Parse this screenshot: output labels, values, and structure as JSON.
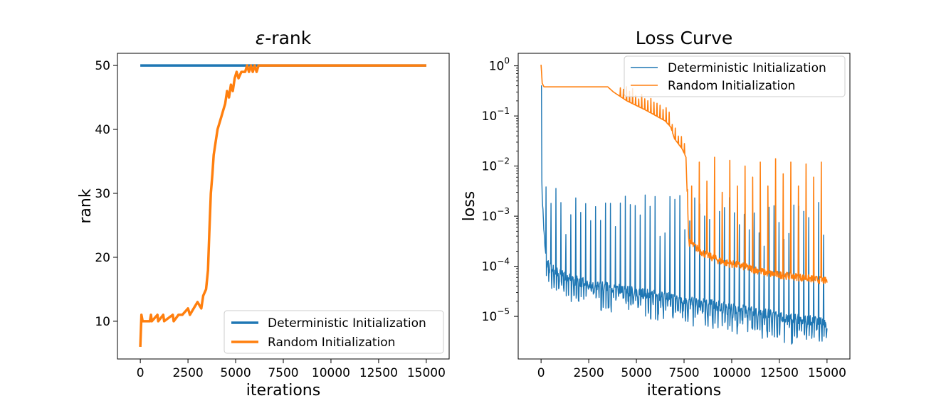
{
  "chart_data": [
    {
      "type": "line",
      "title_symbol": "ε",
      "title_rest": "-rank",
      "xlabel": "iterations",
      "ylabel": "rank",
      "xlim": [
        -1200,
        16200
      ],
      "ylim": [
        4.1,
        51.9
      ],
      "xticks": [
        0,
        2500,
        5000,
        7500,
        10000,
        12500,
        15000
      ],
      "yticks": [
        10,
        20,
        30,
        40,
        50
      ],
      "legend": "lower-right",
      "series": [
        {
          "name": "Deterministic Initialization",
          "color": "#1f77b4",
          "points": [
            [
              0,
              50
            ],
            [
              15000,
              50
            ]
          ]
        },
        {
          "name": "Random Initialization",
          "color": "#ff7f0e",
          "points": [
            [
              0,
              6
            ],
            [
              60,
              11
            ],
            [
              120,
              10
            ],
            [
              500,
              10
            ],
            [
              560,
              11
            ],
            [
              600,
              10
            ],
            [
              900,
              11
            ],
            [
              940,
              10
            ],
            [
              1200,
              11
            ],
            [
              1250,
              10
            ],
            [
              1700,
              11
            ],
            [
              1750,
              10
            ],
            [
              2000,
              11
            ],
            [
              2200,
              11
            ],
            [
              2500,
              12
            ],
            [
              2600,
              11
            ],
            [
              2800,
              12
            ],
            [
              3000,
              13
            ],
            [
              3200,
              12
            ],
            [
              3300,
              14
            ],
            [
              3450,
              15
            ],
            [
              3550,
              18
            ],
            [
              3620,
              24
            ],
            [
              3700,
              30
            ],
            [
              3780,
              33
            ],
            [
              3850,
              36
            ],
            [
              3950,
              38
            ],
            [
              4050,
              40
            ],
            [
              4150,
              41
            ],
            [
              4250,
              42
            ],
            [
              4350,
              43
            ],
            [
              4450,
              44
            ],
            [
              4550,
              46
            ],
            [
              4650,
              45
            ],
            [
              4750,
              47
            ],
            [
              4850,
              46
            ],
            [
              4950,
              48
            ],
            [
              5050,
              49
            ],
            [
              5150,
              48
            ],
            [
              5300,
              49
            ],
            [
              5500,
              49
            ],
            [
              5600,
              50
            ],
            [
              5700,
              49
            ],
            [
              5800,
              50
            ],
            [
              5900,
              49
            ],
            [
              6000,
              50
            ],
            [
              6100,
              49
            ],
            [
              6200,
              50
            ],
            [
              15000,
              50
            ]
          ]
        }
      ]
    },
    {
      "type": "line",
      "title": "Loss Curve",
      "xlabel": "iterations",
      "ylabel": "loss",
      "xscale": "linear",
      "yscale": "log",
      "xlim": [
        -1200,
        16200
      ],
      "ylim_log10": [
        -5.85,
        0.25
      ],
      "xticks": [
        0,
        2500,
        5000,
        7500,
        10000,
        12500,
        15000
      ],
      "yticks": [
        {
          "base": "10",
          "exp": "0",
          "value": 0
        },
        {
          "base": "10",
          "exp": "−1",
          "value": -1
        },
        {
          "base": "10",
          "exp": "−2",
          "value": -2
        },
        {
          "base": "10",
          "exp": "−3",
          "value": -3
        },
        {
          "base": "10",
          "exp": "−4",
          "value": -4
        },
        {
          "base": "10",
          "exp": "−5",
          "value": -5
        }
      ],
      "legend": "upper-right",
      "series": [
        {
          "name": "Deterministic Initialization",
          "color": "#1f77b4",
          "start_loss": 0.4,
          "spike_loss_peaks": [
            0.0015,
            0.0032,
            0.0045,
            0.006,
            0.0035,
            0.0025,
            0.004,
            0.003,
            0.0022,
            0.0018
          ]
        },
        {
          "name": "Random Initialization",
          "color": "#ff7f0e",
          "points": [
            [
              0,
              1.05
            ],
            [
              60,
              0.45
            ],
            [
              150,
              0.38
            ],
            [
              3500,
              0.38
            ],
            [
              3800,
              0.3
            ],
            [
              4500,
              0.2
            ],
            [
              5500,
              0.13
            ],
            [
              6500,
              0.08
            ],
            [
              6800,
              0.06
            ],
            [
              7000,
              0.035
            ],
            [
              7400,
              0.022
            ],
            [
              7600,
              0.015
            ],
            [
              7750,
              0.0003
            ],
            [
              8500,
              0.00018
            ],
            [
              9500,
              0.00012
            ],
            [
              10500,
              0.0001
            ],
            [
              12000,
              7e-05
            ],
            [
              13500,
              6e-05
            ],
            [
              15000,
              5e-05
            ]
          ],
          "spike_iterations": [
            7900,
            8300,
            8700,
            9100,
            9500,
            9900,
            10300,
            10700,
            11100,
            11500,
            11900,
            12300,
            12700,
            13100,
            13500,
            13900,
            14300,
            14700
          ],
          "spike_loss_peaks": [
            0.004,
            0.012,
            0.005,
            0.015,
            0.003,
            0.013,
            0.004,
            0.01,
            0.006,
            0.012,
            0.004,
            0.014,
            0.007,
            0.012,
            0.004,
            0.011,
            0.006,
            0.012
          ]
        }
      ]
    }
  ]
}
